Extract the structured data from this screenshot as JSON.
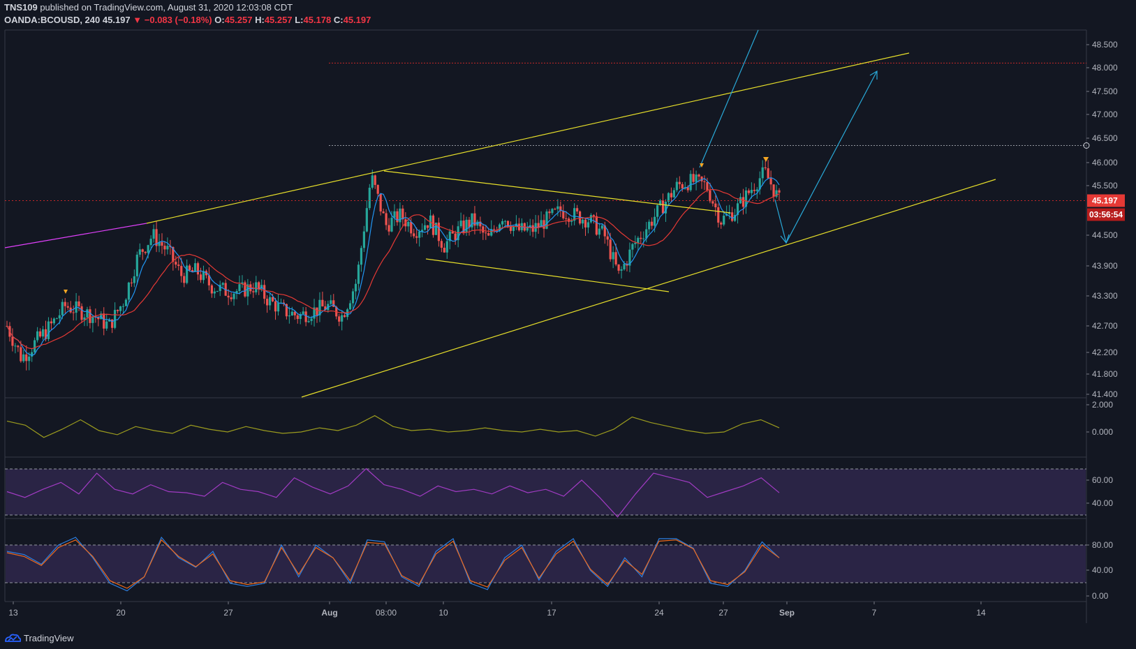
{
  "header": {
    "author": "TNS109",
    "published_text": "published on TradingView.com, August 31, 2020 12:03:08 CDT",
    "symbol": "OANDA:BCOUSD, 240",
    "last": "45.197",
    "change": "−0.083 (−0.18%)",
    "o_label": "O:",
    "o_val": "45.257",
    "h_label": "H:",
    "h_val": "45.257",
    "l_label": "L:",
    "l_val": "45.178",
    "c_label": "C:",
    "c_val": "45.197"
  },
  "footer": {
    "brand": "TradingView"
  },
  "colors": {
    "background": "#131722",
    "up": "#26a69a",
    "down": "#ef5350",
    "wick": "#b2b5be",
    "ma_fast": "#2196f3",
    "ma_slow": "#e53935",
    "trendline": "#e8e02a",
    "magenta": "#e040fb",
    "arrow": "#29a9d8",
    "osc": "#9c9c1e",
    "rsi": "#a13bc3",
    "stoch_k": "#2d7fe0",
    "stoch_d": "#f06a1c"
  },
  "chart_data": [
    {
      "type": "candlestick",
      "title": "OANDA:BCOUSD, 240",
      "y_ticks": [
        "48.500",
        "48.000",
        "47.500",
        "47.000",
        "46.500",
        "46.000",
        "45.500",
        "44.500",
        "43.900",
        "43.300",
        "42.700",
        "42.200",
        "41.800",
        "41.400"
      ],
      "x_ticks": [
        "13",
        "20",
        "27",
        "Aug",
        "08:00",
        "10",
        "17",
        "24",
        "27",
        "Sep",
        "7",
        "14"
      ],
      "ylim": [
        41.4,
        48.7
      ],
      "last_price_label": "45.197",
      "countdown_label": "03:56:54",
      "current_price": 45.197,
      "resistance_level": 48.1,
      "horizontal_level": 46.35,
      "path_approx": [
        42.7,
        42.1,
        42.4,
        42.7,
        43.1,
        43.0,
        42.9,
        42.7,
        43.2,
        44.1,
        44.5,
        44.2,
        43.7,
        43.8,
        43.5,
        43.4,
        43.4,
        43.5,
        43.2,
        43.0,
        42.9,
        43.0,
        43.1,
        42.9,
        43.6,
        45.7,
        44.7,
        44.9,
        44.6,
        44.8,
        44.3,
        44.6,
        44.8,
        44.4,
        44.9,
        44.6,
        44.6,
        44.8,
        45.0,
        44.9,
        44.8,
        44.5,
        43.7,
        44.3,
        44.7,
        45.1,
        45.5,
        45.6,
        45.5,
        44.8,
        45.0,
        45.4,
        45.8,
        45.197
      ]
    },
    {
      "type": "line",
      "title": "",
      "y_ticks": [
        "2.000",
        "0.000"
      ],
      "series": [
        {
          "values": [
            0.8,
            0.5,
            -0.4,
            0.2,
            0.9,
            0.1,
            -0.2,
            0.4,
            0.1,
            -0.1,
            0.5,
            0.2,
            0.0,
            0.4,
            0.1,
            -0.1,
            0.0,
            0.3,
            0.1,
            0.5,
            1.2,
            0.4,
            0.1,
            0.2,
            0.0,
            0.1,
            0.3,
            0.1,
            0.0,
            0.2,
            0.0,
            0.1,
            -0.3,
            0.2,
            1.1,
            0.7,
            0.4,
            0.1,
            -0.1,
            0.0,
            0.6,
            0.9,
            0.3
          ]
        }
      ]
    },
    {
      "type": "line",
      "title": "",
      "y_ticks": [
        "60.00",
        "40.00"
      ],
      "series": [
        {
          "values": [
            50,
            45,
            52,
            58,
            48,
            66,
            52,
            48,
            56,
            50,
            49,
            46,
            58,
            52,
            50,
            45,
            62,
            54,
            48,
            55,
            70,
            56,
            52,
            46,
            55,
            50,
            52,
            48,
            55,
            49,
            52,
            46,
            60,
            45,
            28,
            48,
            66,
            62,
            58,
            45,
            50,
            55,
            62,
            49
          ]
        }
      ]
    },
    {
      "type": "line",
      "title": "",
      "y_ticks": [
        "80.00",
        "40.00",
        "0.00"
      ],
      "series": [
        {
          "values": [
            70,
            65,
            50,
            80,
            92,
            60,
            20,
            8,
            30,
            92,
            60,
            45,
            70,
            20,
            15,
            20,
            80,
            30,
            80,
            60,
            20,
            88,
            85,
            30,
            15,
            70,
            90,
            20,
            10,
            60,
            80,
            25,
            70,
            90,
            40,
            15,
            60,
            30,
            90,
            90,
            75,
            20,
            15,
            40,
            85,
            60
          ]
        },
        {
          "values": [
            68,
            62,
            48,
            76,
            88,
            62,
            24,
            12,
            30,
            88,
            62,
            46,
            66,
            24,
            18,
            22,
            76,
            34,
            76,
            60,
            24,
            84,
            82,
            32,
            18,
            66,
            86,
            24,
            14,
            56,
            76,
            28,
            66,
            86,
            42,
            18,
            56,
            34,
            86,
            88,
            74,
            24,
            18,
            38,
            80,
            60
          ]
        }
      ]
    }
  ]
}
